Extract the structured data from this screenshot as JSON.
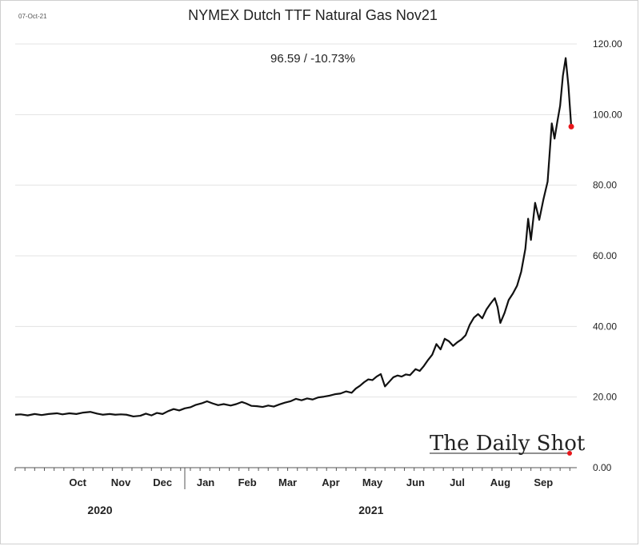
{
  "chart_data": {
    "type": "line",
    "title": "NYMEX Dutch TTF Natural Gas Nov21",
    "subtitle": "96.59  /  -10.73%",
    "date_stamp": "07-Oct-21",
    "y_axis_position": "right",
    "ylim": [
      0,
      120
    ],
    "y_ticks": [
      "0.00",
      "20.00",
      "40.00",
      "60.00",
      "80.00",
      "100.00",
      "120.00"
    ],
    "grid": true,
    "x_axis_type": "date",
    "xlim": [
      "2020-09-01",
      "2021-10-10"
    ],
    "x_ticks": [
      {
        "label": "Oct",
        "date": "2020-10-16"
      },
      {
        "label": "Nov",
        "date": "2020-11-16"
      },
      {
        "label": "Dec",
        "date": "2020-12-16"
      },
      {
        "label": "Jan",
        "date": "2021-01-16"
      },
      {
        "label": "Feb",
        "date": "2021-02-15"
      },
      {
        "label": "Mar",
        "date": "2021-03-16"
      },
      {
        "label": "Apr",
        "date": "2021-04-16"
      },
      {
        "label": "May",
        "date": "2021-05-16"
      },
      {
        "label": "Jun",
        "date": "2021-06-16"
      },
      {
        "label": "Jul",
        "date": "2021-07-16"
      },
      {
        "label": "Aug",
        "date": "2021-08-16"
      },
      {
        "label": "Sep",
        "date": "2021-09-16"
      }
    ],
    "year_labels": [
      {
        "label": "2020",
        "date": "2020-11-01"
      },
      {
        "label": "2021",
        "date": "2021-05-15"
      }
    ],
    "year_separator_date": "2021-01-01",
    "last_point_color": "#e8161a",
    "series": [
      {
        "color": "#111111",
        "points": [
          [
            "2020-09-01",
            15.0
          ],
          [
            "2020-09-05",
            15.1
          ],
          [
            "2020-09-10",
            14.8
          ],
          [
            "2020-09-15",
            15.2
          ],
          [
            "2020-09-20",
            14.9
          ],
          [
            "2020-09-25",
            15.2
          ],
          [
            "2020-10-01",
            15.4
          ],
          [
            "2020-10-05",
            15.1
          ],
          [
            "2020-10-10",
            15.4
          ],
          [
            "2020-10-15",
            15.2
          ],
          [
            "2020-10-20",
            15.6
          ],
          [
            "2020-10-25",
            15.8
          ],
          [
            "2020-10-30",
            15.3
          ],
          [
            "2020-11-03",
            15.0
          ],
          [
            "2020-11-08",
            15.2
          ],
          [
            "2020-11-12",
            15.0
          ],
          [
            "2020-11-16",
            15.1
          ],
          [
            "2020-11-20",
            15.0
          ],
          [
            "2020-11-25",
            14.5
          ],
          [
            "2020-11-30",
            14.7
          ],
          [
            "2020-12-04",
            15.3
          ],
          [
            "2020-12-08",
            14.8
          ],
          [
            "2020-12-12",
            15.5
          ],
          [
            "2020-12-16",
            15.2
          ],
          [
            "2020-12-20",
            16.0
          ],
          [
            "2020-12-24",
            16.6
          ],
          [
            "2020-12-28",
            16.2
          ],
          [
            "2021-01-01",
            16.8
          ],
          [
            "2021-01-05",
            17.1
          ],
          [
            "2021-01-09",
            17.8
          ],
          [
            "2021-01-13",
            18.2
          ],
          [
            "2021-01-17",
            18.8
          ],
          [
            "2021-01-21",
            18.2
          ],
          [
            "2021-01-25",
            17.7
          ],
          [
            "2021-01-29",
            18.0
          ],
          [
            "2021-02-03",
            17.6
          ],
          [
            "2021-02-07",
            18.0
          ],
          [
            "2021-02-11",
            18.6
          ],
          [
            "2021-02-14",
            18.2
          ],
          [
            "2021-02-18",
            17.5
          ],
          [
            "2021-02-22",
            17.4
          ],
          [
            "2021-02-26",
            17.2
          ],
          [
            "2021-03-02",
            17.6
          ],
          [
            "2021-03-06",
            17.3
          ],
          [
            "2021-03-10",
            17.9
          ],
          [
            "2021-03-14",
            18.4
          ],
          [
            "2021-03-18",
            18.8
          ],
          [
            "2021-03-22",
            19.5
          ],
          [
            "2021-03-26",
            19.1
          ],
          [
            "2021-03-30",
            19.6
          ],
          [
            "2021-04-03",
            19.3
          ],
          [
            "2021-04-07",
            19.9
          ],
          [
            "2021-04-11",
            20.1
          ],
          [
            "2021-04-15",
            20.4
          ],
          [
            "2021-04-19",
            20.8
          ],
          [
            "2021-04-23",
            21.0
          ],
          [
            "2021-04-27",
            21.6
          ],
          [
            "2021-05-01",
            21.2
          ],
          [
            "2021-05-04",
            22.4
          ],
          [
            "2021-05-07",
            23.2
          ],
          [
            "2021-05-10",
            24.2
          ],
          [
            "2021-05-13",
            25.0
          ],
          [
            "2021-05-16",
            24.8
          ],
          [
            "2021-05-19",
            25.8
          ],
          [
            "2021-05-22",
            26.5
          ],
          [
            "2021-05-25",
            23.0
          ],
          [
            "2021-05-28",
            24.3
          ],
          [
            "2021-05-31",
            25.6
          ],
          [
            "2021-06-03",
            26.1
          ],
          [
            "2021-06-06",
            25.8
          ],
          [
            "2021-06-09",
            26.4
          ],
          [
            "2021-06-12",
            26.2
          ],
          [
            "2021-06-16",
            27.9
          ],
          [
            "2021-06-19",
            27.4
          ],
          [
            "2021-06-22",
            28.8
          ],
          [
            "2021-06-25",
            30.5
          ],
          [
            "2021-06-28",
            32.0
          ],
          [
            "2021-07-01",
            35.0
          ],
          [
            "2021-07-04",
            33.5
          ],
          [
            "2021-07-07",
            36.5
          ],
          [
            "2021-07-10",
            35.8
          ],
          [
            "2021-07-13",
            34.5
          ],
          [
            "2021-07-16",
            35.5
          ],
          [
            "2021-07-19",
            36.3
          ],
          [
            "2021-07-22",
            37.5
          ],
          [
            "2021-07-25",
            40.5
          ],
          [
            "2021-07-28",
            42.5
          ],
          [
            "2021-07-31",
            43.5
          ],
          [
            "2021-08-03",
            42.3
          ],
          [
            "2021-08-06",
            44.8
          ],
          [
            "2021-08-09",
            46.5
          ],
          [
            "2021-08-12",
            48.0
          ],
          [
            "2021-08-14",
            45.5
          ],
          [
            "2021-08-16",
            41.0
          ],
          [
            "2021-08-19",
            43.8
          ],
          [
            "2021-08-22",
            47.5
          ],
          [
            "2021-08-25",
            49.3
          ],
          [
            "2021-08-28",
            51.5
          ],
          [
            "2021-08-31",
            55.5
          ],
          [
            "2021-09-03",
            62.0
          ],
          [
            "2021-09-05",
            70.5
          ],
          [
            "2021-09-07",
            64.5
          ],
          [
            "2021-09-10",
            75.0
          ],
          [
            "2021-09-13",
            70.2
          ],
          [
            "2021-09-16",
            76.0
          ],
          [
            "2021-09-19",
            81.0
          ],
          [
            "2021-09-22",
            97.5
          ],
          [
            "2021-09-24",
            93.2
          ],
          [
            "2021-09-26",
            98.0
          ],
          [
            "2021-09-28",
            102.5
          ],
          [
            "2021-09-30",
            111.0
          ],
          [
            "2021-10-02",
            116.0
          ],
          [
            "2021-10-04",
            108.0
          ],
          [
            "2021-10-06",
            96.59
          ]
        ]
      }
    ]
  },
  "watermark": "The Daily Shot"
}
